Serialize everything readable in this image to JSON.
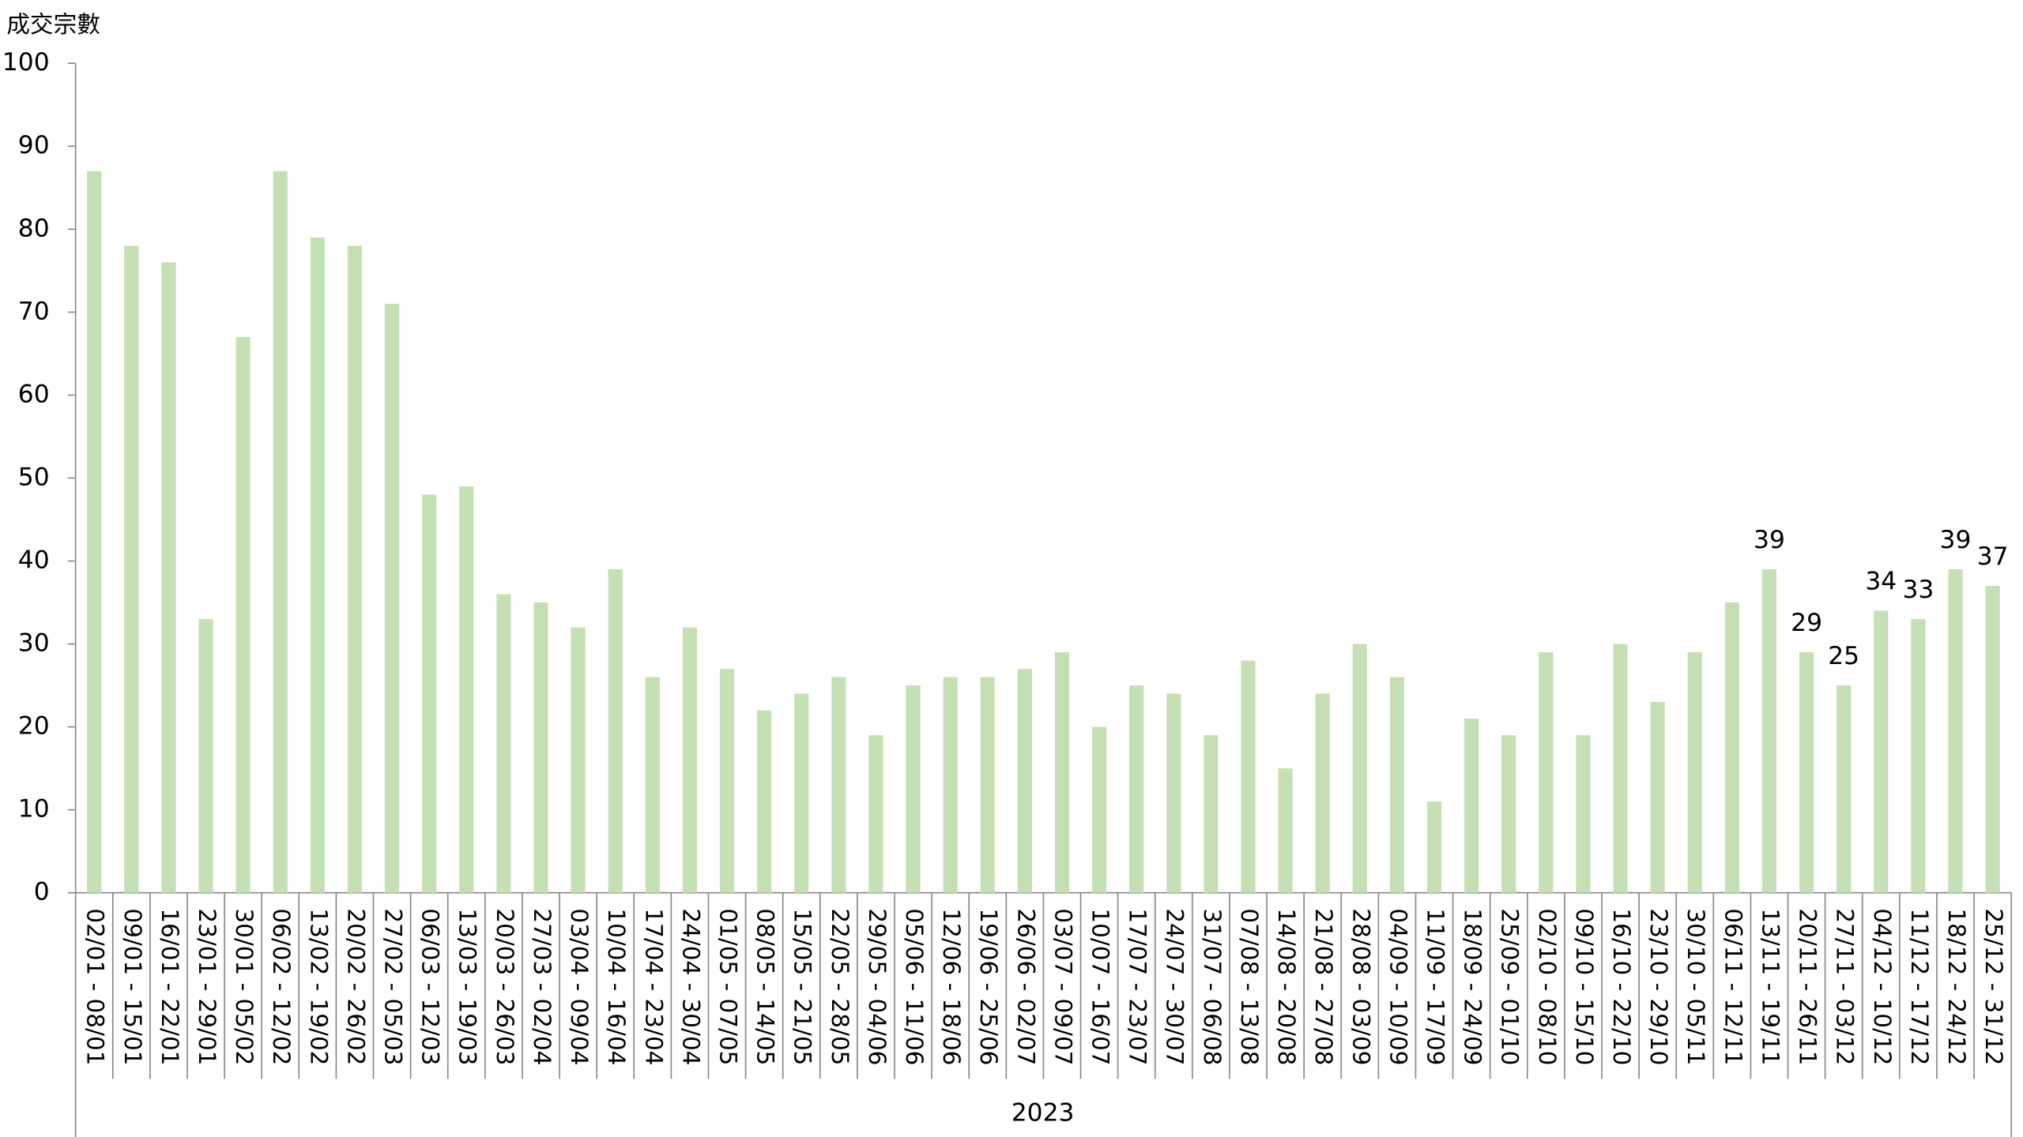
{
  "chart_data": {
    "type": "bar",
    "y_label": "成交宗數",
    "x_group_label": "2023",
    "categories": [
      "02/01 - 08/01",
      "09/01 - 15/01",
      "16/01 - 22/01",
      "23/01 - 29/01",
      "30/01 - 05/02",
      "06/02 - 12/02",
      "13/02 - 19/02",
      "20/02 - 26/02",
      "27/02 - 05/03",
      "06/03 - 12/03",
      "13/03 - 19/03",
      "20/03 - 26/03",
      "27/03 - 02/04",
      "03/04 - 09/04",
      "10/04 - 16/04",
      "17/04 - 23/04",
      "24/04 - 30/04",
      "01/05 - 07/05",
      "08/05 - 14/05",
      "15/05 - 21/05",
      "22/05 - 28/05",
      "29/05 - 04/06",
      "05/06 - 11/06",
      "12/06 - 18/06",
      "19/06 - 25/06",
      "26/06 - 02/07",
      "03/07 - 09/07",
      "10/07 - 16/07",
      "17/07 - 23/07",
      "24/07 - 30/07",
      "31/07 - 06/08",
      "07/08 - 13/08",
      "14/08 - 20/08",
      "21/08 - 27/08",
      "28/08 - 03/09",
      "04/09 - 10/09",
      "11/09 - 17/09",
      "18/09 - 24/09",
      "25/09 - 01/10",
      "02/10 - 08/10",
      "09/10 - 15/10",
      "16/10 - 22/10",
      "23/10 - 29/10",
      "30/10 - 05/11",
      "06/11 - 12/11",
      "13/11 - 19/11",
      "20/11 - 26/11",
      "27/11 - 03/12",
      "04/12 - 10/12",
      "11/12 - 17/12",
      "18/12 - 24/12",
      "25/12 - 31/12"
    ],
    "values": [
      87,
      78,
      76,
      33,
      67,
      87,
      79,
      78,
      71,
      48,
      49,
      36,
      35,
      32,
      39,
      26,
      32,
      27,
      22,
      24,
      26,
      19,
      25,
      26,
      26,
      27,
      29,
      20,
      25,
      24,
      19,
      28,
      15,
      24,
      30,
      26,
      11,
      21,
      19,
      29,
      19,
      30,
      23,
      29,
      35,
      39,
      29,
      25,
      34,
      33,
      39,
      37
    ],
    "value_labels": [
      null,
      null,
      null,
      null,
      null,
      null,
      null,
      null,
      null,
      null,
      null,
      null,
      null,
      null,
      null,
      null,
      null,
      null,
      null,
      null,
      null,
      null,
      null,
      null,
      null,
      null,
      null,
      null,
      null,
      null,
      null,
      null,
      null,
      null,
      null,
      null,
      null,
      null,
      null,
      null,
      null,
      null,
      null,
      null,
      null,
      "39",
      "29",
      "25",
      "34",
      "33",
      "39",
      "37"
    ],
    "color": "#c5e0b4",
    "ylim": [
      0,
      100
    ],
    "yticks": [
      0,
      10,
      20,
      30,
      40,
      50,
      60,
      70,
      80,
      90,
      100
    ],
    "grid": false
  }
}
